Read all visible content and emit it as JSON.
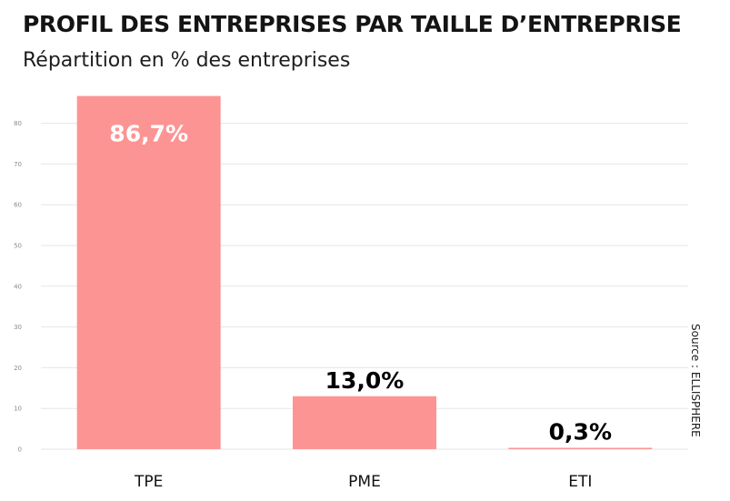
{
  "chart_data": {
    "type": "bar",
    "title": "PROFIL DES ENTREPRISES PAR TAILLE D’ENTREPRISE",
    "subtitle": "Répartition en % des entreprises",
    "source": "Source : ELLISPHERE",
    "categories": [
      "TPE",
      "PME",
      "ETI"
    ],
    "values": [
      86.7,
      13.0,
      0.3
    ],
    "data_labels": [
      "86,7%",
      "13,0%",
      "0,3%"
    ],
    "ylim": [
      0,
      90
    ],
    "yticks": [
      0,
      10,
      20,
      30,
      40,
      50,
      60,
      70,
      80
    ],
    "ytick_labels": [
      "0",
      "10",
      "20",
      "30",
      "40",
      "50",
      "60",
      "70",
      "80"
    ],
    "grid": true,
    "bar_color": "#fd9494"
  }
}
